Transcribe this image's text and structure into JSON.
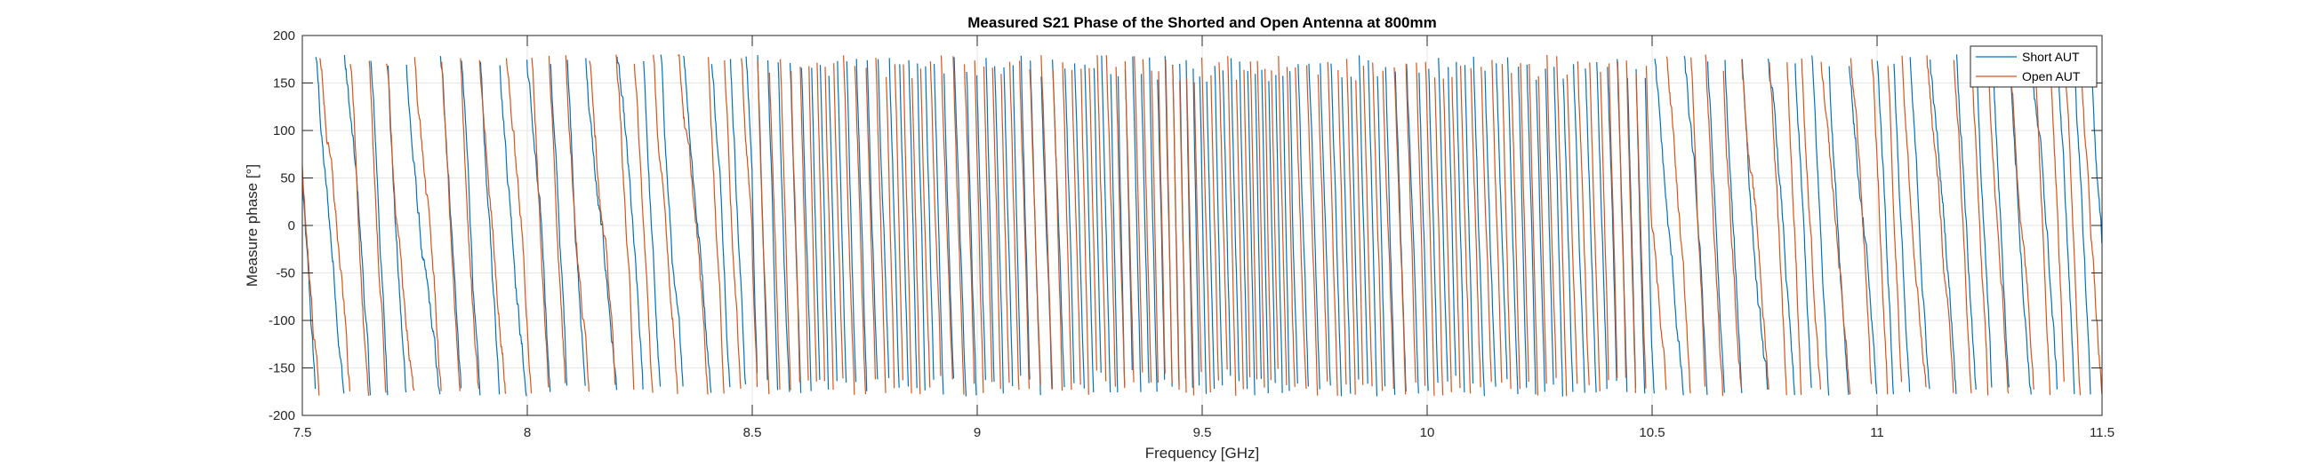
{
  "chart_data": {
    "type": "line",
    "title": "Measured S21 Phase of the Shorted and Open Antenna at 800mm",
    "xlabel": "Frequency [GHz]",
    "ylabel": "Measure phase [°]",
    "xlim": [
      7.5,
      11.5
    ],
    "ylim": [
      -200,
      200
    ],
    "xticks": [
      "7.5",
      "8",
      "8.5",
      "9",
      "9.5",
      "10",
      "10.5",
      "11",
      "11.5"
    ],
    "yticks": [
      "-200",
      "-150",
      "-100",
      "-50",
      "0",
      "50",
      "100",
      "150",
      "200"
    ],
    "grid": true,
    "legend_position": "top-right",
    "wrap_range": [
      -180,
      180
    ],
    "series": [
      {
        "name": "Short AUT",
        "color": "#0072BD",
        "segments": [
          {
            "x_range": [
              7.5,
              8.5
            ],
            "cycles_per_ghz": 20
          },
          {
            "x_range": [
              8.5,
              9.3
            ],
            "cycles_per_ghz": 46
          },
          {
            "x_range": [
              9.3,
              9.7
            ],
            "cycles_per_ghz": 60
          },
          {
            "x_range": [
              9.7,
              10.5
            ],
            "cycles_per_ghz": 46
          },
          {
            "x_range": [
              10.5,
              11.5
            ],
            "cycles_per_ghz": 22
          }
        ]
      },
      {
        "name": "Open AUT",
        "color": "#D95319",
        "segments": [
          {
            "x_range": [
              7.5,
              8.5
            ],
            "cycles_per_ghz": 20
          },
          {
            "x_range": [
              8.5,
              9.3
            ],
            "cycles_per_ghz": 46
          },
          {
            "x_range": [
              9.3,
              9.7
            ],
            "cycles_per_ghz": 58
          },
          {
            "x_range": [
              9.7,
              10.5
            ],
            "cycles_per_ghz": 46
          },
          {
            "x_range": [
              10.5,
              11.5
            ],
            "cycles_per_ghz": 22
          }
        ]
      }
    ]
  }
}
